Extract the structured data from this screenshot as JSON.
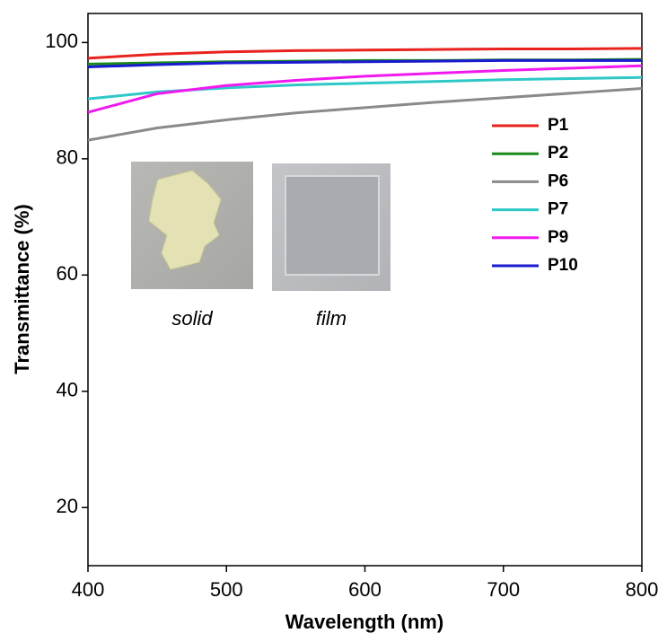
{
  "chart_data": {
    "type": "line",
    "xlabel": "Wavelength (nm)",
    "ylabel": "Transmittance (%)",
    "x": [
      400,
      450,
      500,
      550,
      600,
      650,
      700,
      750,
      800
    ],
    "xlim": [
      400,
      800
    ],
    "xticks": [
      400,
      500,
      600,
      700,
      800
    ],
    "ylim": [
      10,
      105
    ],
    "yticks": [
      20,
      40,
      60,
      80,
      100
    ],
    "series": [
      {
        "name": "P1",
        "color": "#e8231f",
        "values": [
          97.3,
          98.0,
          98.4,
          98.6,
          98.7,
          98.8,
          98.9,
          98.9,
          99.0
        ]
      },
      {
        "name": "P2",
        "color": "#1a8a1a",
        "values": [
          96.3,
          96.5,
          96.7,
          96.8,
          96.9,
          96.9,
          97.0,
          97.0,
          97.1
        ]
      },
      {
        "name": "P6",
        "color": "#8a8a8a",
        "values": [
          83.2,
          85.3,
          86.7,
          87.9,
          88.8,
          89.7,
          90.5,
          91.3,
          92.1
        ]
      },
      {
        "name": "P7",
        "color": "#2ec8c8",
        "values": [
          90.3,
          91.5,
          92.2,
          92.7,
          93.0,
          93.3,
          93.6,
          93.8,
          94.0
        ]
      },
      {
        "name": "P9",
        "color": "#f01af0",
        "values": [
          88.0,
          91.2,
          92.6,
          93.5,
          94.2,
          94.7,
          95.2,
          95.6,
          96.0
        ]
      },
      {
        "name": "P10",
        "color": "#1a1ad0",
        "values": [
          95.8,
          96.2,
          96.5,
          96.6,
          96.7,
          96.8,
          96.9,
          96.9,
          96.9
        ]
      }
    ],
    "annotations": [
      "solid",
      "film"
    ]
  }
}
